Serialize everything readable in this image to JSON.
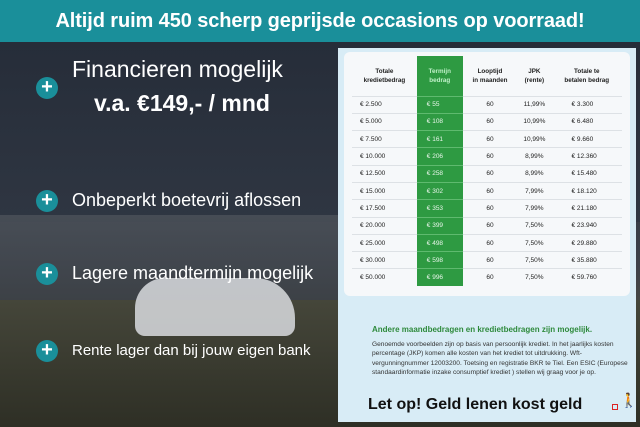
{
  "header": {
    "title": "Altijd ruim 450 scherp geprijsde occasions op voorraad!"
  },
  "colors": {
    "accent": "#1a8f9a",
    "green": "#2e9a42"
  },
  "features": [
    {
      "line1": "Financieren mogelijk",
      "line2": "v.a. €149,- / mnd"
    },
    {
      "line1": "Onbeperkt boetevrij aflossen"
    },
    {
      "line1": "Lagere maandtermijn mogelijk"
    },
    {
      "line1": "Rente lager dan bij jouw eigen bank"
    }
  ],
  "table": {
    "headers": [
      [
        "Totale",
        "kredietbedrag"
      ],
      [
        "Termijn",
        "bedrag"
      ],
      [
        "Looptijd",
        "in maanden"
      ],
      [
        "JPK",
        "(rente)"
      ],
      [
        "Totale te",
        "betalen bedrag"
      ]
    ],
    "rows": [
      [
        "€ 2.500",
        "€ 55",
        "60",
        "11,99%",
        "€ 3.300"
      ],
      [
        "€ 5.000",
        "€ 108",
        "60",
        "10,99%",
        "€ 6.480"
      ],
      [
        "€ 7.500",
        "€ 161",
        "60",
        "10,99%",
        "€ 9.660"
      ],
      [
        "€ 10.000",
        "€ 206",
        "60",
        "8,99%",
        "€ 12.360"
      ],
      [
        "€ 12.500",
        "€ 258",
        "60",
        "8,99%",
        "€ 15.480"
      ],
      [
        "€ 15.000",
        "€ 302",
        "60",
        "7,99%",
        "€ 18.120"
      ],
      [
        "€ 17.500",
        "€ 353",
        "60",
        "7,99%",
        "€ 21.180"
      ],
      [
        "€ 20.000",
        "€ 399",
        "60",
        "7,50%",
        "€ 23.940"
      ],
      [
        "€ 25.000",
        "€ 498",
        "60",
        "7,50%",
        "€ 29.880"
      ],
      [
        "€ 30.000",
        "€ 598",
        "60",
        "7,50%",
        "€ 35.880"
      ],
      [
        "€ 50.000",
        "€ 996",
        "60",
        "7,50%",
        "€ 59.760"
      ]
    ]
  },
  "note": {
    "title": "Andere maandbedragen en kredietbedragen zijn mogelijk.",
    "body": "Genoemde voorbeelden zijn op basis van persoonlijk krediet. In het jaarlijks kosten percentage (JKP) komen alle kosten van het krediet tot uitdrukking. Wft-vergunningnummer 12003200. Toetsing en registratie BKR te Tiel. Een ESIC (Europese standaardinformatie inzake consumptief krediet ) stellen wij graag voor je op.",
    "warning": "Let op! Geld lenen kost geld"
  }
}
